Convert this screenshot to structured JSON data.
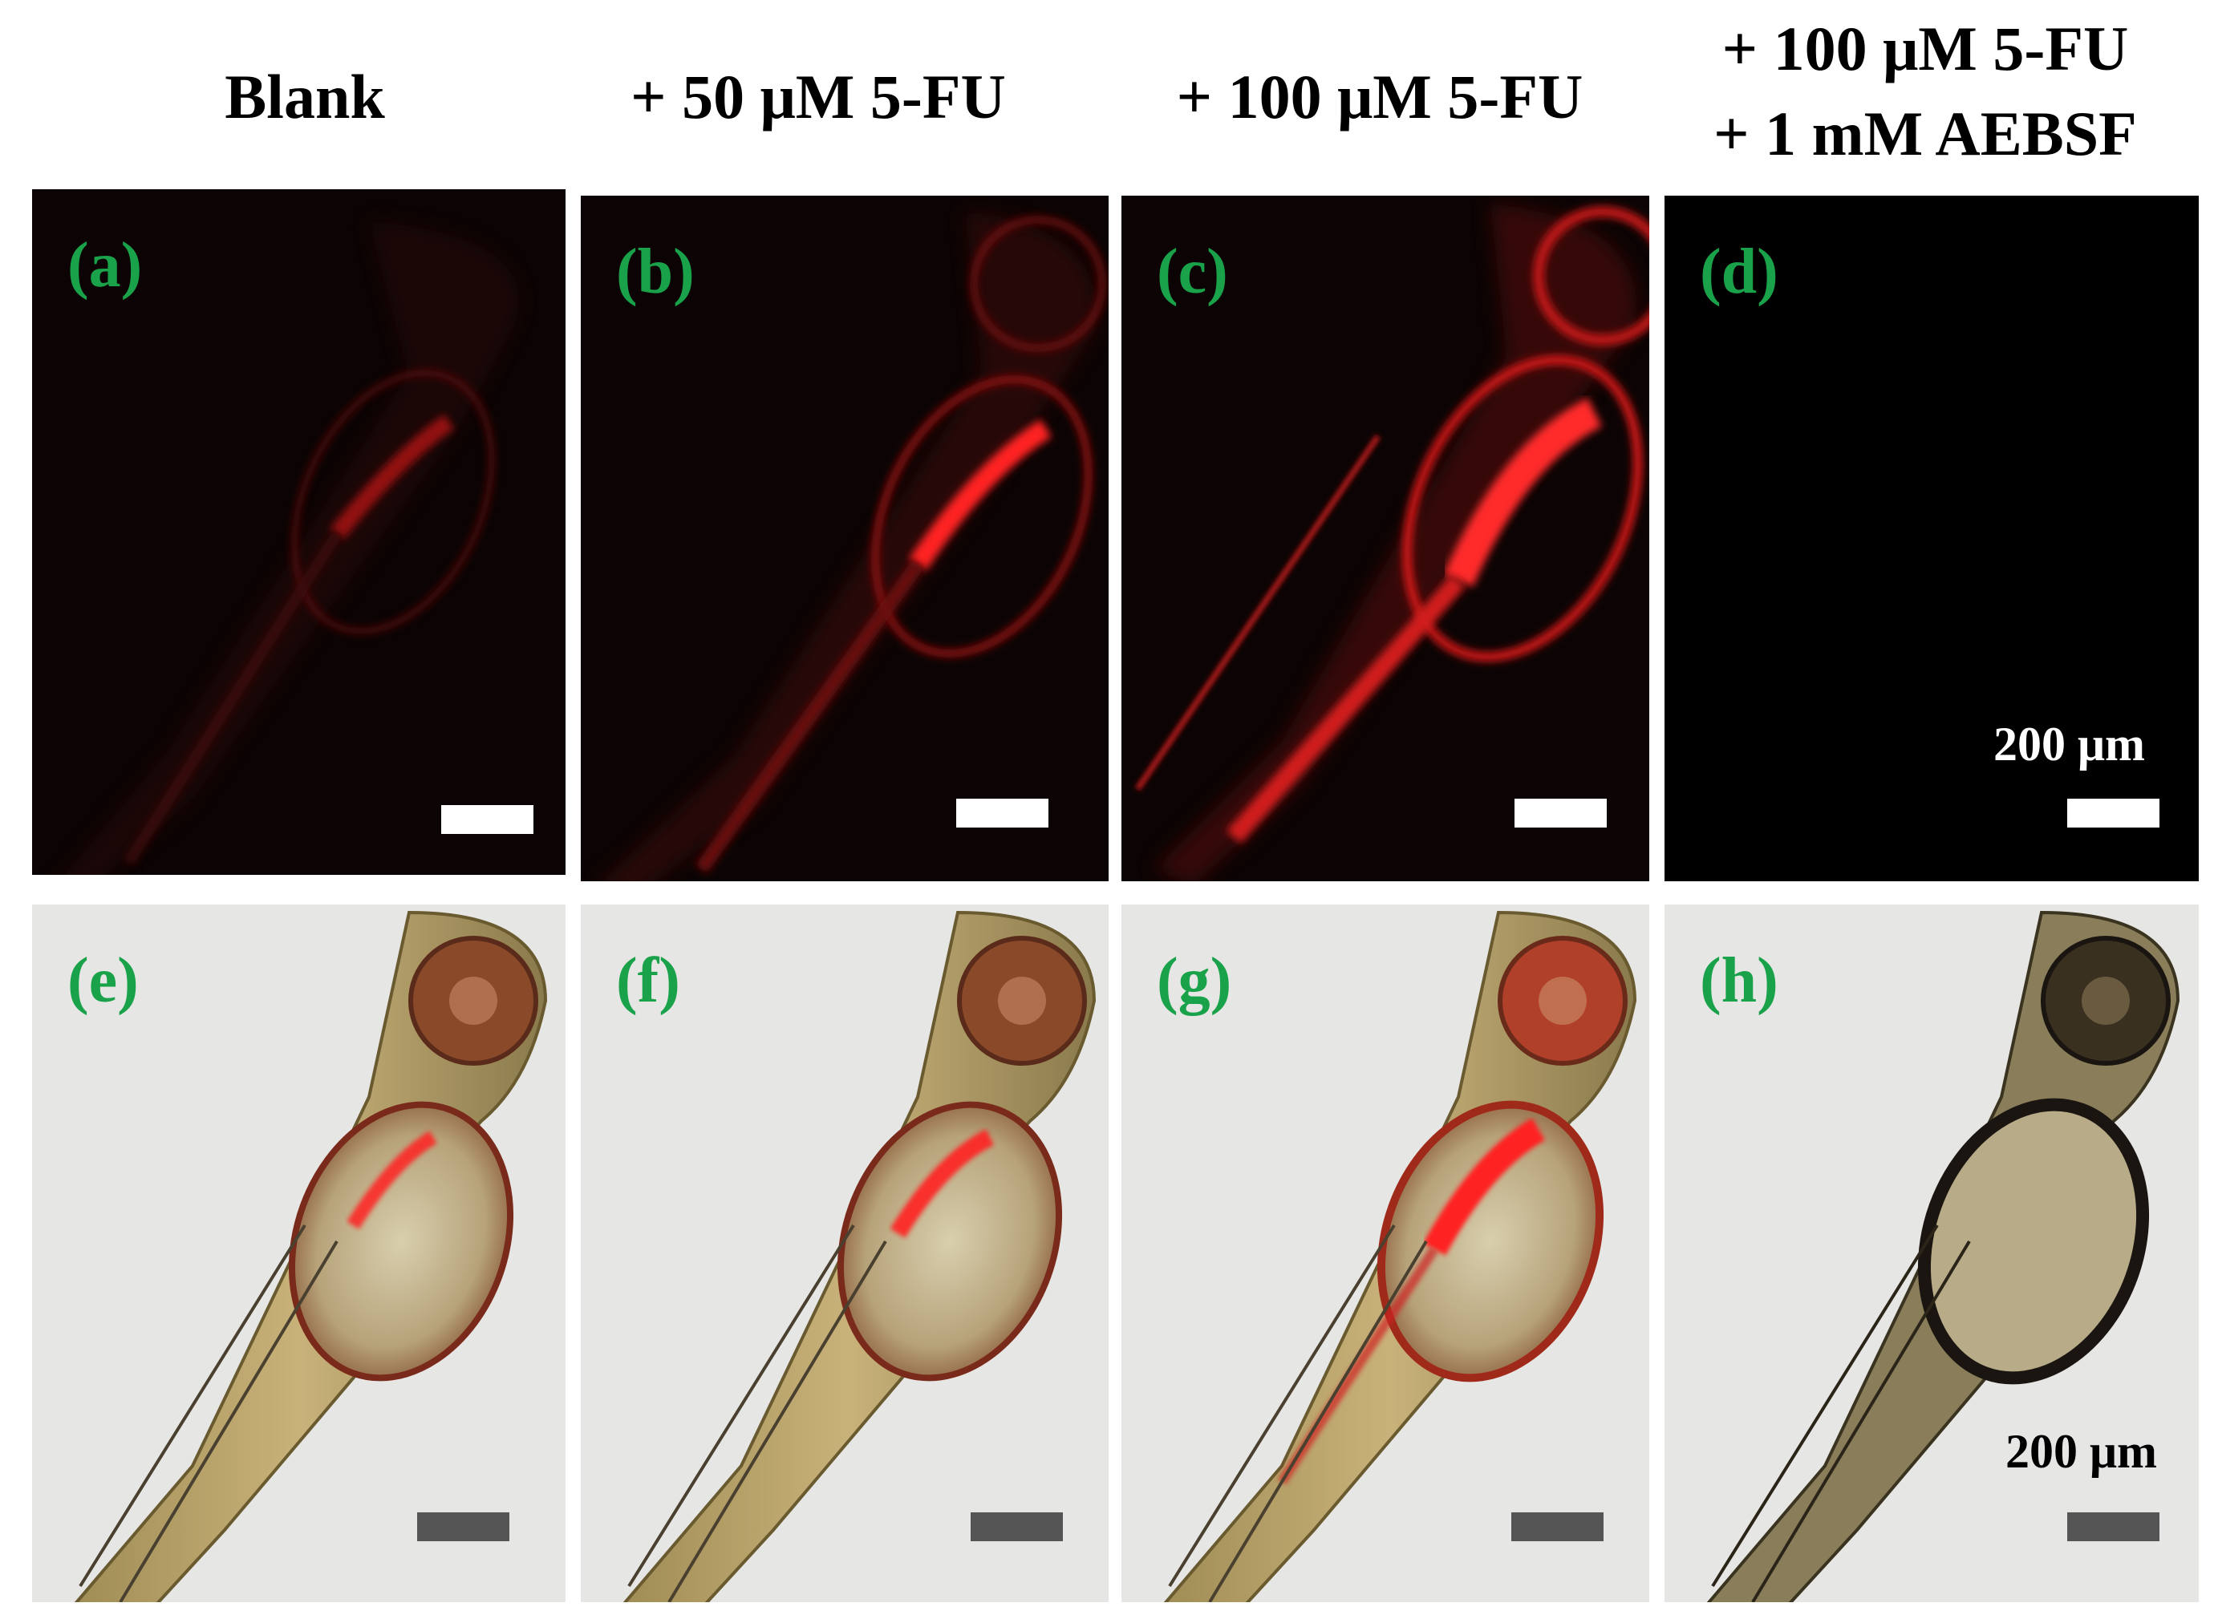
{
  "columns": [
    {
      "title": "Blank"
    },
    {
      "title": "+ 50 μM 5-FU"
    },
    {
      "title": "+ 100 μM 5-FU"
    },
    {
      "title_line1": "+ 100 μM 5-FU",
      "title_line2": "+ 1 mM AEBSF"
    }
  ],
  "panels": {
    "a": {
      "label": "(a)"
    },
    "b": {
      "label": "(b)"
    },
    "c": {
      "label": "(c)"
    },
    "d": {
      "label": "(d)"
    },
    "e": {
      "label": "(e)"
    },
    "f": {
      "label": "(f)"
    },
    "g": {
      "label": "(g)"
    },
    "h": {
      "label": "(h)"
    }
  },
  "scale_label": "200 μm",
  "colors": {
    "label_green": "#1aa24a",
    "fluorescence_red": "#ff2020",
    "fluor_background": "#0a0505",
    "brightfield_background": "#e6e6e4",
    "scalebar_white": "#ffffff",
    "scalebar_gray": "#555555"
  }
}
